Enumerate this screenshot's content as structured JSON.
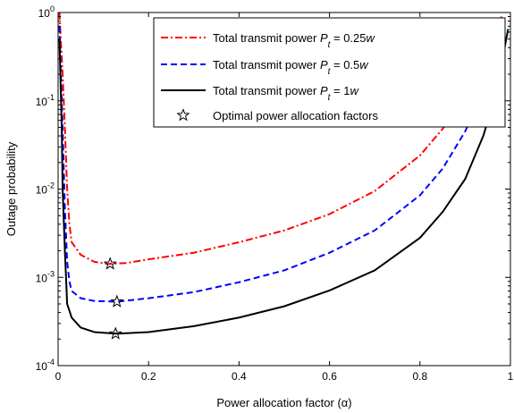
{
  "chart_data": {
    "type": "line",
    "title": "",
    "xlabel": "Power allocation factor (α)",
    "ylabel": "Outage probability",
    "xlim": [
      0,
      1
    ],
    "ylim": [
      0.0001,
      1
    ],
    "yscale": "log",
    "grid": false,
    "legend_position": "top-right",
    "x_ticks": [
      "0",
      "0.2",
      "0.4",
      "0.6",
      "0.8",
      "1"
    ],
    "y_ticks": [
      {
        "base": "10",
        "exp": "0"
      },
      {
        "base": "10",
        "exp": "-1"
      },
      {
        "base": "10",
        "exp": "-2"
      },
      {
        "base": "10",
        "exp": "-3"
      },
      {
        "base": "10",
        "exp": "-4"
      }
    ],
    "series": [
      {
        "name": "Total transmit power P_t = 0.25w",
        "legend_prefix": "Total transmit power ",
        "legend_symbol": "P",
        "legend_sub": "t",
        "legend_suffix": " = 0.25",
        "legend_unit": "w",
        "color": "#ff0000",
        "dash": "8,3,2,3",
        "x": [
          0.003,
          0.005,
          0.01,
          0.015,
          0.02,
          0.025,
          0.03,
          0.05,
          0.08,
          0.11,
          0.15,
          0.2,
          0.3,
          0.4,
          0.5,
          0.6,
          0.7,
          0.8,
          0.85,
          0.9,
          0.94,
          0.97,
          0.98
        ],
        "y": [
          1,
          0.6,
          0.2,
          0.05,
          0.01,
          0.004,
          0.0025,
          0.0018,
          0.0015,
          0.00142,
          0.00145,
          0.0016,
          0.0019,
          0.0025,
          0.0034,
          0.0052,
          0.0095,
          0.024,
          0.048,
          0.11,
          0.28,
          0.6,
          0.9
        ]
      },
      {
        "name": "Total transmit power P_t = 0.5w",
        "legend_prefix": "Total transmit power ",
        "legend_symbol": "P",
        "legend_sub": "t",
        "legend_suffix": " = 0.5",
        "legend_unit": "w",
        "color": "#0000ff",
        "dash": "7,4",
        "x": [
          0.003,
          0.005,
          0.01,
          0.015,
          0.02,
          0.025,
          0.03,
          0.05,
          0.08,
          0.13,
          0.2,
          0.3,
          0.4,
          0.5,
          0.6,
          0.7,
          0.8,
          0.85,
          0.9,
          0.94,
          0.97,
          0.985
        ],
        "y": [
          0.7,
          0.3,
          0.05,
          0.006,
          0.0015,
          0.0009,
          0.0007,
          0.00058,
          0.00054,
          0.00053,
          0.00058,
          0.00068,
          0.00088,
          0.0012,
          0.0019,
          0.0034,
          0.0085,
          0.017,
          0.045,
          0.13,
          0.38,
          0.8
        ]
      },
      {
        "name": "Total transmit power P_t = 1w",
        "legend_prefix": "Total transmit power ",
        "legend_symbol": "P",
        "legend_sub": "t",
        "legend_suffix": " = 1",
        "legend_unit": "w",
        "color": "#000000",
        "dash": "",
        "x": [
          0.003,
          0.005,
          0.008,
          0.01,
          0.015,
          0.02,
          0.03,
          0.05,
          0.08,
          0.13,
          0.2,
          0.3,
          0.4,
          0.5,
          0.6,
          0.7,
          0.8,
          0.85,
          0.9,
          0.94,
          0.97,
          0.985,
          0.995
        ],
        "y": [
          0.5,
          0.2,
          0.05,
          0.01,
          0.002,
          0.0005,
          0.00035,
          0.00027,
          0.00024,
          0.00023,
          0.00024,
          0.00028,
          0.00035,
          0.00047,
          0.00071,
          0.0012,
          0.0028,
          0.0055,
          0.013,
          0.04,
          0.13,
          0.35,
          0.65
        ]
      }
    ],
    "optimal_points": {
      "legend_label": "Optimal power allocation factors",
      "points": [
        {
          "x": 0.115,
          "y": 0.00142
        },
        {
          "x": 0.13,
          "y": 0.00053
        },
        {
          "x": 0.127,
          "y": 0.00023
        }
      ]
    }
  }
}
